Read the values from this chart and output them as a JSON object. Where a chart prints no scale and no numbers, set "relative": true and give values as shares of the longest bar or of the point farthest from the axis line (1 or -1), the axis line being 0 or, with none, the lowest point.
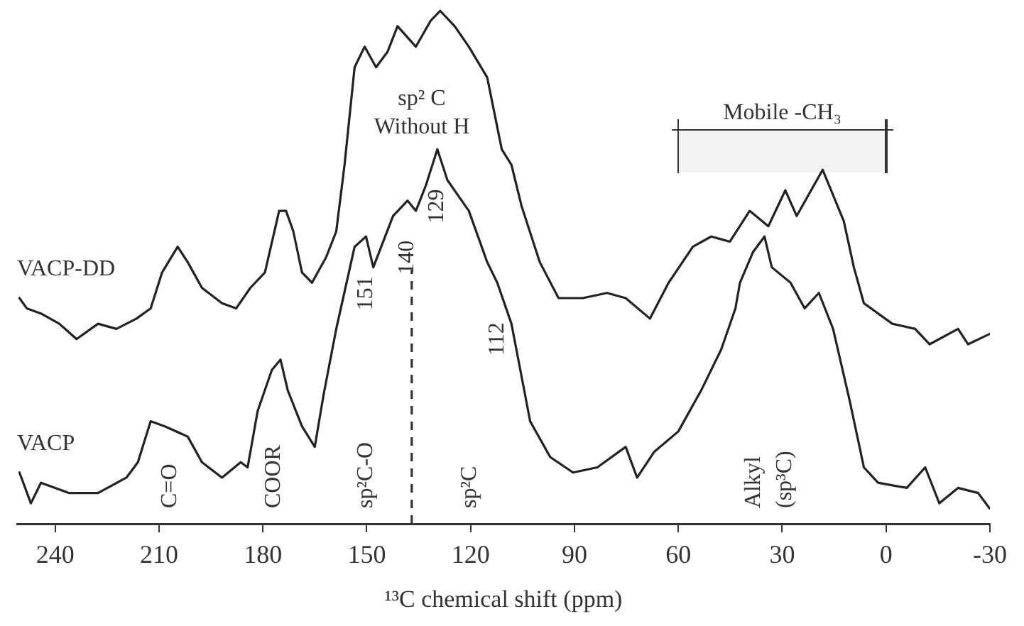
{
  "chart_data": {
    "type": "line",
    "relative": true,
    "xlabel": "¹³C chemical shift (ppm)",
    "xlim": [
      251,
      -30
    ],
    "xticks": [
      240,
      210,
      180,
      150,
      120,
      90,
      60,
      30,
      0,
      -30
    ],
    "grid": false,
    "legend": false,
    "marker": "none",
    "line_style": "solid",
    "series": [
      {
        "name": "VACP-DD",
        "color": "#222222",
        "x": [
          250.3,
          248.2,
          244.1,
          238.8,
          233.8,
          227.6,
          222.3,
          216.5,
          212.4,
          209.1,
          204.6,
          201.7,
          197.6,
          191.8,
          187.7,
          183.6,
          179.4,
          175.3,
          173.3,
          171.2,
          168.7,
          165.8,
          161.7,
          158.8,
          156.4,
          153.5,
          150.6,
          147.3,
          144.0,
          141.1,
          135.8,
          131.6,
          128.8,
          124.6,
          120.5,
          115.2,
          111.0,
          108.2,
          105.3,
          100.0,
          94.6,
          87.6,
          80.6,
          75.2,
          68.2,
          62.8,
          55.8,
          50.5,
          45.1,
          39.4,
          34.0,
          29.1,
          25.8,
          22.5,
          18.3,
          12.2,
          9.3,
          6.4,
          -1.8,
          -8.4,
          -12.6,
          -20.8,
          -23.7,
          -29.9
        ],
        "values": [
          0.44,
          0.42,
          0.41,
          0.39,
          0.36,
          0.39,
          0.38,
          0.4,
          0.42,
          0.49,
          0.54,
          0.51,
          0.46,
          0.43,
          0.42,
          0.46,
          0.49,
          0.61,
          0.61,
          0.57,
          0.49,
          0.47,
          0.52,
          0.57,
          0.7,
          0.89,
          0.93,
          0.89,
          0.92,
          0.97,
          0.93,
          0.98,
          1.0,
          0.97,
          0.93,
          0.87,
          0.73,
          0.7,
          0.62,
          0.51,
          0.44,
          0.44,
          0.45,
          0.44,
          0.4,
          0.47,
          0.54,
          0.56,
          0.55,
          0.61,
          0.58,
          0.65,
          0.6,
          0.64,
          0.69,
          0.59,
          0.5,
          0.43,
          0.39,
          0.38,
          0.35,
          0.38,
          0.35,
          0.37
        ]
      },
      {
        "name": "VACP",
        "color": "#222222",
        "x": [
          250.3,
          247.0,
          244.1,
          235.9,
          227.6,
          219.4,
          216.1,
          212.4,
          208.3,
          201.7,
          197.6,
          191.8,
          186.4,
          184.4,
          181.5,
          177.4,
          174.9,
          172.8,
          168.7,
          165.0,
          162.5,
          158.8,
          153.5,
          150.2,
          148.1,
          142.4,
          138.2,
          135.8,
          132.9,
          129.6,
          126.7,
          120.5,
          115.2,
          112.3,
          108.2,
          102.8,
          97.0,
          90.4,
          83.4,
          75.2,
          71.9,
          67.0,
          60.0,
          53.4,
          47.6,
          43.5,
          42.2,
          38.4,
          35.1,
          33.0,
          27.6,
          23.5,
          19.4,
          15.3,
          10.5,
          6.4,
          2.3,
          -6.0,
          -11.3,
          -15.4,
          -20.8,
          -26.6,
          -29.9
        ],
        "values": [
          0.1,
          0.04,
          0.08,
          0.06,
          0.06,
          0.09,
          0.12,
          0.2,
          0.19,
          0.17,
          0.12,
          0.09,
          0.12,
          0.11,
          0.22,
          0.3,
          0.32,
          0.26,
          0.19,
          0.15,
          0.25,
          0.38,
          0.54,
          0.56,
          0.5,
          0.6,
          0.63,
          0.61,
          0.66,
          0.73,
          0.67,
          0.61,
          0.51,
          0.47,
          0.39,
          0.2,
          0.13,
          0.1,
          0.11,
          0.15,
          0.09,
          0.14,
          0.18,
          0.26,
          0.34,
          0.42,
          0.47,
          0.53,
          0.56,
          0.5,
          0.47,
          0.42,
          0.45,
          0.38,
          0.24,
          0.11,
          0.08,
          0.07,
          0.11,
          0.04,
          0.07,
          0.06,
          0.03
        ]
      }
    ],
    "annotations": [
      "sp² C\nWithout H",
      {
        "text": "151",
        "x": 150.2,
        "y": 0.56
      },
      {
        "text": "140",
        "x": 138.2,
        "y": 0.63
      },
      {
        "text": "129",
        "x": 129.6,
        "y": 0.73
      },
      {
        "text": "112",
        "x": 112.3,
        "y": 0.47
      },
      "C=O",
      "COOR",
      "sp²C-O",
      "sp²C",
      "Alkyl\n(sp³C)"
    ],
    "ref_lines": [
      {
        "axis": "x",
        "value": 137,
        "line_style": "dashed"
      }
    ],
    "bands": [
      {
        "axis": "x",
        "from": 60,
        "to": 0,
        "label": "Mobile -CH₃"
      }
    ]
  }
}
